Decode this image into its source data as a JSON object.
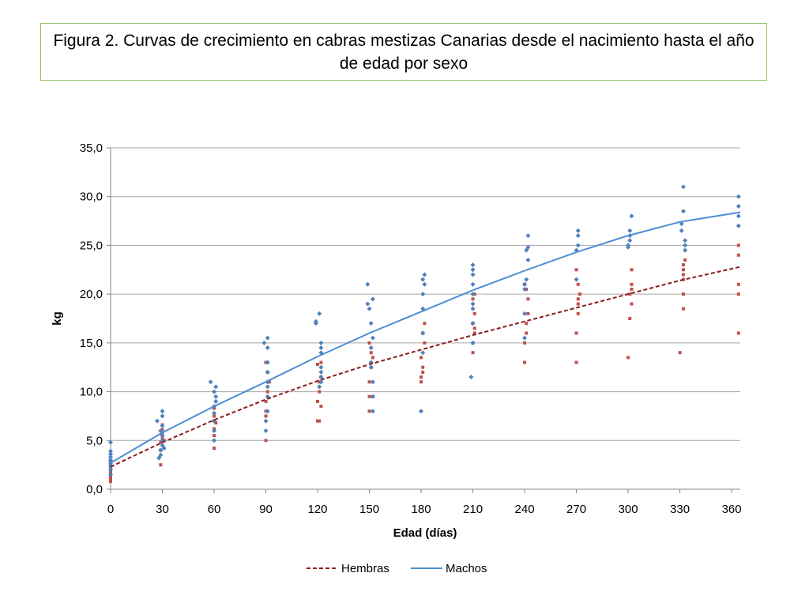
{
  "chart_data": {
    "type": "scatter",
    "title": "Figura 2. Curvas de crecimiento en cabras mestizas Canarias desde el nacimiento hasta el año de edad por sexo",
    "xlabel": "Edad (días)",
    "ylabel": "kg",
    "xlim": [
      0,
      365
    ],
    "ylim": [
      0,
      35
    ],
    "x_ticks": [
      "0",
      "30",
      "60",
      "90",
      "120",
      "150",
      "180",
      "210",
      "240",
      "270",
      "300",
      "330",
      "360"
    ],
    "y_ticks": [
      "0,0",
      "5,0",
      "10,0",
      "15,0",
      "20,0",
      "25,0",
      "30,0",
      "35,0"
    ],
    "grid": "horizontal",
    "legend_position": "bottom",
    "legend": [
      "Hembras",
      "Machos"
    ],
    "colors": {
      "hembras": "#c0504d",
      "machos": "#4f81bd",
      "hembras_line": "#8b1c1c",
      "machos_line": "#4a8fd4",
      "grid": "#a6a6a6",
      "title_border": "#8bc36a"
    },
    "trend_lines": [
      {
        "name": "Hembras",
        "style": "dashed",
        "color": "#8b1c1c",
        "x": [
          0,
          30,
          60,
          90,
          120,
          150,
          180,
          210,
          240,
          270,
          300,
          330,
          365
        ],
        "y": [
          2.3,
          4.8,
          7.1,
          9.2,
          11.1,
          12.8,
          14.3,
          15.8,
          17.2,
          18.6,
          20.0,
          21.4,
          22.8
        ]
      },
      {
        "name": "Machos",
        "style": "solid",
        "color": "#4a8fd4",
        "x": [
          0,
          30,
          60,
          90,
          120,
          150,
          180,
          210,
          240,
          270,
          300,
          330,
          365
        ],
        "y": [
          2.7,
          5.8,
          8.5,
          11.0,
          13.6,
          16.0,
          18.2,
          20.4,
          22.4,
          24.3,
          26.0,
          27.4,
          28.4
        ]
      }
    ],
    "series": [
      {
        "name": "Hembras",
        "marker": "square",
        "color": "#c0504d",
        "points": [
          [
            0,
            0.8
          ],
          [
            0,
            1.0
          ],
          [
            0,
            1.3
          ],
          [
            0,
            1.6
          ],
          [
            0,
            2.0
          ],
          [
            0,
            2.4
          ],
          [
            0,
            2.8
          ],
          [
            0,
            1.8
          ],
          [
            29,
            2.5
          ],
          [
            29,
            4.0
          ],
          [
            29,
            4.8
          ],
          [
            30,
            5.3
          ],
          [
            30,
            5.7
          ],
          [
            30,
            6.1
          ],
          [
            30,
            6.6
          ],
          [
            31,
            5.0
          ],
          [
            60,
            4.2
          ],
          [
            60,
            5.5
          ],
          [
            60,
            6.2
          ],
          [
            60,
            7.0
          ],
          [
            60,
            7.5
          ],
          [
            60,
            8.3
          ],
          [
            61,
            6.8
          ],
          [
            90,
            5.0
          ],
          [
            90,
            7.5
          ],
          [
            90,
            8.0
          ],
          [
            90,
            9.0
          ],
          [
            91,
            10.0
          ],
          [
            92,
            11.0
          ],
          [
            90,
            13.0
          ],
          [
            91,
            12.0
          ],
          [
            120,
            7.0
          ],
          [
            120,
            9.0
          ],
          [
            121,
            10.0
          ],
          [
            121,
            11.0
          ],
          [
            122,
            11.5
          ],
          [
            120,
            12.8
          ],
          [
            122,
            8.5
          ],
          [
            122,
            13.0
          ],
          [
            121,
            7.0
          ],
          [
            150,
            8.0
          ],
          [
            150,
            9.5
          ],
          [
            150,
            11.0
          ],
          [
            151,
            12.5
          ],
          [
            152,
            13.5
          ],
          [
            151,
            14.0
          ],
          [
            150,
            15.0
          ],
          [
            152,
            9.5
          ],
          [
            180,
            11.0
          ],
          [
            180,
            11.5
          ],
          [
            181,
            12.0
          ],
          [
            181,
            12.5
          ],
          [
            180,
            13.5
          ],
          [
            182,
            15.0
          ],
          [
            181,
            16.0
          ],
          [
            182,
            17.0
          ],
          [
            210,
            14.0
          ],
          [
            210,
            15.0
          ],
          [
            211,
            16.0
          ],
          [
            211,
            16.5
          ],
          [
            210,
            17.0
          ],
          [
            211,
            18.0
          ],
          [
            210,
            19.5
          ],
          [
            211,
            20.0
          ],
          [
            240,
            13.0
          ],
          [
            240,
            15.0
          ],
          [
            241,
            16.0
          ],
          [
            241,
            17.0
          ],
          [
            242,
            18.0
          ],
          [
            242,
            19.5
          ],
          [
            241,
            20.5
          ],
          [
            240,
            21.0
          ],
          [
            270,
            13.0
          ],
          [
            270,
            16.0
          ],
          [
            271,
            18.0
          ],
          [
            271,
            19.0
          ],
          [
            271,
            19.5
          ],
          [
            272,
            20.0
          ],
          [
            271,
            21.0
          ],
          [
            270,
            22.5
          ],
          [
            300,
            13.5
          ],
          [
            301,
            17.5
          ],
          [
            302,
            19.0
          ],
          [
            301,
            20.0
          ],
          [
            302,
            20.5
          ],
          [
            302,
            21.0
          ],
          [
            302,
            22.5
          ],
          [
            330,
            14.0
          ],
          [
            332,
            18.5
          ],
          [
            332,
            20.0
          ],
          [
            332,
            21.5
          ],
          [
            332,
            22.0
          ],
          [
            332,
            22.5
          ],
          [
            332,
            23.0
          ],
          [
            333,
            23.5
          ],
          [
            364,
            16.0
          ],
          [
            364,
            20.0
          ],
          [
            364,
            21.0
          ],
          [
            364,
            24.0
          ],
          [
            364,
            25.0
          ]
        ]
      },
      {
        "name": "Machos",
        "marker": "diamond",
        "color": "#4f81bd",
        "points": [
          [
            0,
            1.5
          ],
          [
            0,
            2.0
          ],
          [
            0,
            2.3
          ],
          [
            0,
            2.6
          ],
          [
            0,
            3.0
          ],
          [
            0,
            3.3
          ],
          [
            0,
            3.6
          ],
          [
            0,
            3.9
          ],
          [
            0,
            4.8
          ],
          [
            0,
            2.9
          ],
          [
            27,
            7.0
          ],
          [
            28,
            3.2
          ],
          [
            29,
            3.5
          ],
          [
            29,
            4.0
          ],
          [
            30,
            4.5
          ],
          [
            30,
            5.0
          ],
          [
            30,
            5.5
          ],
          [
            29,
            6.0
          ],
          [
            30,
            6.5
          ],
          [
            30,
            7.5
          ],
          [
            30,
            8.0
          ],
          [
            31,
            4.2
          ],
          [
            58,
            11.0
          ],
          [
            60,
            5.0
          ],
          [
            60,
            6.0
          ],
          [
            60,
            7.0
          ],
          [
            60,
            7.8
          ],
          [
            60,
            8.5
          ],
          [
            61,
            9.0
          ],
          [
            61,
            9.5
          ],
          [
            60,
            10.0
          ],
          [
            61,
            10.5
          ],
          [
            89,
            15.0
          ],
          [
            91,
            15.5
          ],
          [
            91,
            14.5
          ],
          [
            91,
            13.0
          ],
          [
            91,
            12.0
          ],
          [
            91,
            11.0
          ],
          [
            91,
            10.5
          ],
          [
            91,
            9.5
          ],
          [
            91,
            8.0
          ],
          [
            90,
            7.0
          ],
          [
            90,
            6.0
          ],
          [
            119,
            17.0
          ],
          [
            119,
            17.2
          ],
          [
            121,
            18.0
          ],
          [
            122,
            15.0
          ],
          [
            122,
            14.5
          ],
          [
            122,
            14.0
          ],
          [
            122,
            12.5
          ],
          [
            122,
            12.0
          ],
          [
            122,
            11.5
          ],
          [
            122,
            11.0
          ],
          [
            121,
            10.5
          ],
          [
            149,
            19.0
          ],
          [
            149,
            21.0
          ],
          [
            150,
            18.5
          ],
          [
            151,
            17.0
          ],
          [
            152,
            19.5
          ],
          [
            152,
            15.5
          ],
          [
            151,
            14.5
          ],
          [
            151,
            13.0
          ],
          [
            151,
            12.5
          ],
          [
            152,
            11.0
          ],
          [
            152,
            9.5
          ],
          [
            152,
            8.0
          ],
          [
            180,
            8.0
          ],
          [
            181,
            14.0
          ],
          [
            181,
            16.0
          ],
          [
            181,
            18.5
          ],
          [
            181,
            20.0
          ],
          [
            182,
            21.0
          ],
          [
            181,
            21.5
          ],
          [
            182,
            22.0
          ],
          [
            209,
            11.5
          ],
          [
            210,
            15.0
          ],
          [
            210,
            17.0
          ],
          [
            210,
            18.5
          ],
          [
            210,
            19.0
          ],
          [
            210,
            20.0
          ],
          [
            210,
            21.0
          ],
          [
            210,
            22.0
          ],
          [
            210,
            22.5
          ],
          [
            210,
            23.0
          ],
          [
            240,
            15.5
          ],
          [
            240,
            18.0
          ],
          [
            240,
            20.5
          ],
          [
            240,
            21.0
          ],
          [
            241,
            21.5
          ],
          [
            242,
            23.5
          ],
          [
            241,
            24.5
          ],
          [
            242,
            24.8
          ],
          [
            242,
            26.0
          ],
          [
            270,
            21.5
          ],
          [
            270,
            24.5
          ],
          [
            271,
            25.0
          ],
          [
            271,
            26.0
          ],
          [
            271,
            26.5
          ],
          [
            300,
            24.8
          ],
          [
            300,
            25.0
          ],
          [
            301,
            25.5
          ],
          [
            301,
            26.0
          ],
          [
            301,
            26.5
          ],
          [
            302,
            28.0
          ],
          [
            331,
            26.5
          ],
          [
            331,
            27.2
          ],
          [
            333,
            24.5
          ],
          [
            333,
            25.0
          ],
          [
            333,
            25.5
          ],
          [
            332,
            28.5
          ],
          [
            332,
            31.0
          ],
          [
            364,
            27.0
          ],
          [
            364,
            28.0
          ],
          [
            364,
            29.0
          ],
          [
            364,
            30.0
          ]
        ]
      }
    ]
  }
}
